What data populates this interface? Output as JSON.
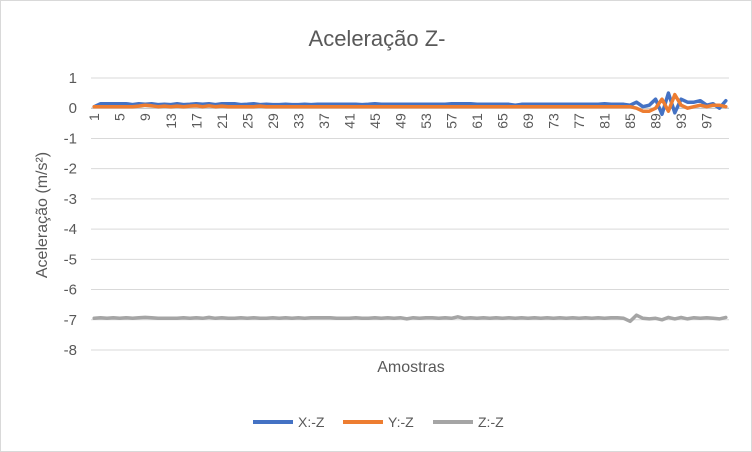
{
  "chart_data": {
    "type": "line",
    "title": "Aceleração Z-",
    "xlabel": "Amostras",
    "ylabel": "Aceleração (m/s²)",
    "ylim": [
      -8,
      1
    ],
    "yticks": [
      1,
      0,
      -1,
      -2,
      -3,
      -4,
      -5,
      -6,
      -7,
      -8
    ],
    "grid": true,
    "legend_position": "bottom",
    "x": [
      1,
      2,
      3,
      4,
      5,
      6,
      7,
      8,
      9,
      10,
      11,
      12,
      13,
      14,
      15,
      16,
      17,
      18,
      19,
      20,
      21,
      22,
      23,
      24,
      25,
      26,
      27,
      28,
      29,
      30,
      31,
      32,
      33,
      34,
      35,
      36,
      37,
      38,
      39,
      40,
      41,
      42,
      43,
      44,
      45,
      46,
      47,
      48,
      49,
      50,
      51,
      52,
      53,
      54,
      55,
      56,
      57,
      58,
      59,
      60,
      61,
      62,
      63,
      64,
      65,
      66,
      67,
      68,
      69,
      70,
      71,
      72,
      73,
      74,
      75,
      76,
      77,
      78,
      79,
      80,
      81,
      82,
      83,
      84,
      85,
      86,
      87,
      88,
      89,
      90,
      91,
      92,
      93,
      94,
      95,
      96,
      97,
      98,
      99,
      100
    ],
    "x_tick_labels": [
      "1",
      "5",
      "9",
      "13",
      "17",
      "21",
      "25",
      "29",
      "33",
      "37",
      "41",
      "45",
      "49",
      "53",
      "57",
      "61",
      "65",
      "69",
      "73",
      "77",
      "81",
      "85",
      "89",
      "93",
      "97"
    ],
    "series": [
      {
        "name": "X:-Z",
        "color": "#4472c4",
        "values": [
          0.05,
          0.15,
          0.15,
          0.15,
          0.15,
          0.15,
          0.12,
          0.15,
          0.13,
          0.15,
          0.12,
          0.13,
          0.12,
          0.15,
          0.12,
          0.13,
          0.15,
          0.13,
          0.15,
          0.12,
          0.15,
          0.15,
          0.15,
          0.12,
          0.13,
          0.15,
          0.12,
          0.13,
          0.12,
          0.12,
          0.13,
          0.12,
          0.12,
          0.13,
          0.12,
          0.13,
          0.13,
          0.13,
          0.13,
          0.13,
          0.13,
          0.13,
          0.12,
          0.13,
          0.15,
          0.13,
          0.13,
          0.13,
          0.13,
          0.13,
          0.13,
          0.13,
          0.13,
          0.13,
          0.13,
          0.13,
          0.15,
          0.15,
          0.15,
          0.15,
          0.13,
          0.13,
          0.13,
          0.13,
          0.13,
          0.13,
          0.1,
          0.13,
          0.13,
          0.13,
          0.13,
          0.13,
          0.13,
          0.13,
          0.13,
          0.13,
          0.13,
          0.13,
          0.13,
          0.13,
          0.15,
          0.13,
          0.13,
          0.13,
          0.1,
          0.2,
          0.05,
          0.1,
          0.3,
          -0.2,
          0.5,
          -0.15,
          0.3,
          0.2,
          0.2,
          0.25,
          0.1,
          0.15,
          0.0,
          0.25
        ]
      },
      {
        "name": "Y:-Z",
        "color": "#ed7d31",
        "values": [
          0.05,
          0.05,
          0.05,
          0.05,
          0.05,
          0.05,
          0.05,
          0.07,
          0.1,
          0.08,
          0.05,
          0.07,
          0.05,
          0.07,
          0.05,
          0.07,
          0.08,
          0.05,
          0.08,
          0.05,
          0.07,
          0.05,
          0.05,
          0.05,
          0.05,
          0.05,
          0.07,
          0.05,
          0.05,
          0.05,
          0.05,
          0.05,
          0.05,
          0.05,
          0.05,
          0.05,
          0.05,
          0.05,
          0.05,
          0.05,
          0.05,
          0.05,
          0.05,
          0.05,
          0.05,
          0.05,
          0.05,
          0.05,
          0.05,
          0.05,
          0.05,
          0.05,
          0.05,
          0.05,
          0.05,
          0.05,
          0.05,
          0.05,
          0.05,
          0.05,
          0.05,
          0.05,
          0.05,
          0.05,
          0.05,
          0.05,
          0.05,
          0.05,
          0.05,
          0.05,
          0.05,
          0.05,
          0.05,
          0.05,
          0.05,
          0.05,
          0.05,
          0.05,
          0.05,
          0.05,
          0.05,
          0.05,
          0.05,
          0.05,
          0.05,
          0.0,
          -0.1,
          -0.1,
          0.0,
          0.3,
          -0.1,
          0.45,
          0.1,
          0.0,
          0.05,
          0.1,
          0.05,
          0.1,
          0.1,
          0.05
        ]
      },
      {
        "name": "Z:-Z",
        "color": "#a5a5a5",
        "values": [
          -6.95,
          -6.93,
          -6.95,
          -6.93,
          -6.95,
          -6.93,
          -6.95,
          -6.93,
          -6.92,
          -6.93,
          -6.95,
          -6.95,
          -6.95,
          -6.95,
          -6.93,
          -6.95,
          -6.93,
          -6.95,
          -6.92,
          -6.95,
          -6.93,
          -6.95,
          -6.95,
          -6.93,
          -6.95,
          -6.93,
          -6.95,
          -6.95,
          -6.93,
          -6.95,
          -6.93,
          -6.95,
          -6.93,
          -6.95,
          -6.93,
          -6.93,
          -6.93,
          -6.93,
          -6.95,
          -6.95,
          -6.95,
          -6.93,
          -6.95,
          -6.95,
          -6.93,
          -6.95,
          -6.93,
          -6.95,
          -6.93,
          -6.97,
          -6.93,
          -6.95,
          -6.93,
          -6.93,
          -6.95,
          -6.93,
          -6.95,
          -6.9,
          -6.95,
          -6.93,
          -6.95,
          -6.93,
          -6.95,
          -6.93,
          -6.95,
          -6.93,
          -6.95,
          -6.93,
          -6.95,
          -6.93,
          -6.95,
          -6.93,
          -6.95,
          -6.93,
          -6.95,
          -6.93,
          -6.95,
          -6.93,
          -6.95,
          -6.93,
          -6.95,
          -6.93,
          -6.93,
          -6.95,
          -7.05,
          -6.85,
          -6.95,
          -6.97,
          -6.95,
          -7.0,
          -6.92,
          -6.97,
          -6.92,
          -6.97,
          -6.93,
          -6.95,
          -6.93,
          -6.95,
          -6.97,
          -6.92
        ]
      }
    ]
  }
}
